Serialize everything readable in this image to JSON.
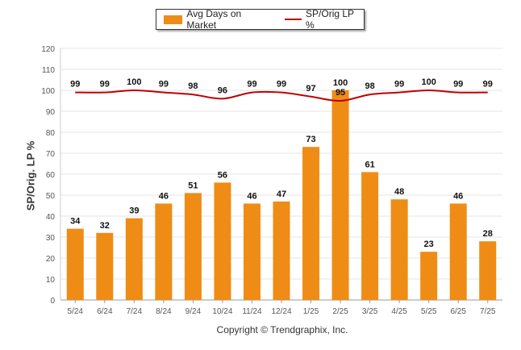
{
  "legend": {
    "bar_label": "Avg Days on Market",
    "line_label": "SP/Orig LP %"
  },
  "copyright": "Copyright © Trendgraphix, Inc.",
  "colors": {
    "bar": "#ef8c15",
    "line": "#c00000",
    "grid": "#e6e6e6",
    "axis": "#999999"
  },
  "chart_data": {
    "type": "bar",
    "ylabel": "SP/Orig. LP %",
    "xlabel": "",
    "ylim": [
      0,
      120
    ],
    "ytick_step": 10,
    "grid": true,
    "legend_position": "top",
    "categories": [
      "5/24",
      "6/24",
      "7/24",
      "8/24",
      "9/24",
      "10/24",
      "11/24",
      "12/24",
      "1/25",
      "2/25",
      "3/25",
      "4/25",
      "5/25",
      "6/25",
      "7/25"
    ],
    "series": [
      {
        "name": "Avg Days on Market",
        "type": "bar",
        "values": [
          34,
          32,
          39,
          46,
          51,
          56,
          46,
          47,
          73,
          100,
          61,
          48,
          23,
          46,
          28
        ]
      },
      {
        "name": "SP/Orig LP %",
        "type": "line",
        "values": [
          99,
          99,
          100,
          99,
          98,
          96,
          99,
          99,
          97,
          95,
          98,
          99,
          100,
          99,
          99
        ]
      }
    ]
  }
}
